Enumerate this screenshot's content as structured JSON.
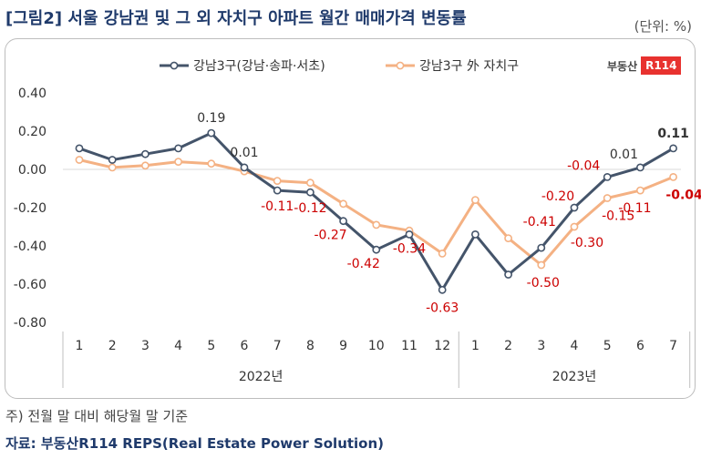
{
  "title": "[그림2] 서울 강남권 및 그 외 자치구 아파트 월간 매매가격 변동률",
  "unit": "(단위: %)",
  "note": "주) 전월 말 대비 해당월 말 기준",
  "source": "자료: 부동산R114 REPS(Real Estate Power Solution)",
  "logo": {
    "text": "부동산",
    "box": "R114"
  },
  "colors": {
    "series1": "#44546a",
    "series2": "#f4b183",
    "label_neg": "#cc0000",
    "label_pos": "#333333"
  },
  "chart_data": {
    "type": "line",
    "ylim": [
      -0.8,
      0.4
    ],
    "yticks": [
      "0.40",
      "0.20",
      "0.00",
      "-0.20",
      "-0.40",
      "-0.60",
      "-0.80"
    ],
    "ytick_values": [
      0.4,
      0.2,
      0.0,
      -0.2,
      -0.4,
      -0.6,
      -0.8
    ],
    "categories": [
      "1",
      "2",
      "3",
      "4",
      "5",
      "6",
      "7",
      "8",
      "9",
      "10",
      "11",
      "12",
      "1",
      "2",
      "3",
      "4",
      "5",
      "6",
      "7"
    ],
    "year_groups": [
      {
        "label": "2022년",
        "count": 12
      },
      {
        "label": "2023년",
        "count": 7
      }
    ],
    "legend_position": "top",
    "series": [
      {
        "name": "강남3구(강남·송파·서초)",
        "values": [
          0.11,
          0.05,
          0.08,
          0.11,
          0.19,
          0.01,
          -0.11,
          -0.12,
          -0.27,
          -0.42,
          -0.34,
          -0.63,
          -0.34,
          -0.55,
          -0.41,
          -0.2,
          -0.04,
          0.01,
          0.11
        ]
      },
      {
        "name": "강남3구 外 자치구",
        "values": [
          0.05,
          0.01,
          0.02,
          0.04,
          0.03,
          -0.01,
          -0.06,
          -0.07,
          -0.18,
          -0.29,
          -0.32,
          -0.44,
          -0.16,
          -0.36,
          -0.5,
          -0.3,
          -0.15,
          -0.11,
          -0.04
        ]
      }
    ],
    "data_labels": [
      {
        "series": 0,
        "index": 4,
        "text": "0.19"
      },
      {
        "series": 0,
        "index": 5,
        "text": "0.01"
      },
      {
        "series": 0,
        "index": 6,
        "text": "-0.11"
      },
      {
        "series": 0,
        "index": 7,
        "text": "-0.12"
      },
      {
        "series": 0,
        "index": 8,
        "text": "-0.27"
      },
      {
        "series": 0,
        "index": 9,
        "text": "-0.42"
      },
      {
        "series": 0,
        "index": 10,
        "text": "-0.34"
      },
      {
        "series": 0,
        "index": 11,
        "text": "-0.63"
      },
      {
        "series": 0,
        "index": 14,
        "text": "-0.41"
      },
      {
        "series": 0,
        "index": 15,
        "text": "-0.20"
      },
      {
        "series": 0,
        "index": 16,
        "text": "-0.04"
      },
      {
        "series": 0,
        "index": 17,
        "text": "0.01"
      },
      {
        "series": 0,
        "index": 18,
        "text": "0.11"
      },
      {
        "series": 1,
        "index": 14,
        "text": "-0.50"
      },
      {
        "series": 1,
        "index": 15,
        "text": "-0.30"
      },
      {
        "series": 1,
        "index": 16,
        "text": "-0.15"
      },
      {
        "series": 1,
        "index": 17,
        "text": "-0.11"
      },
      {
        "series": 1,
        "index": 18,
        "text": "-0.04"
      }
    ]
  }
}
